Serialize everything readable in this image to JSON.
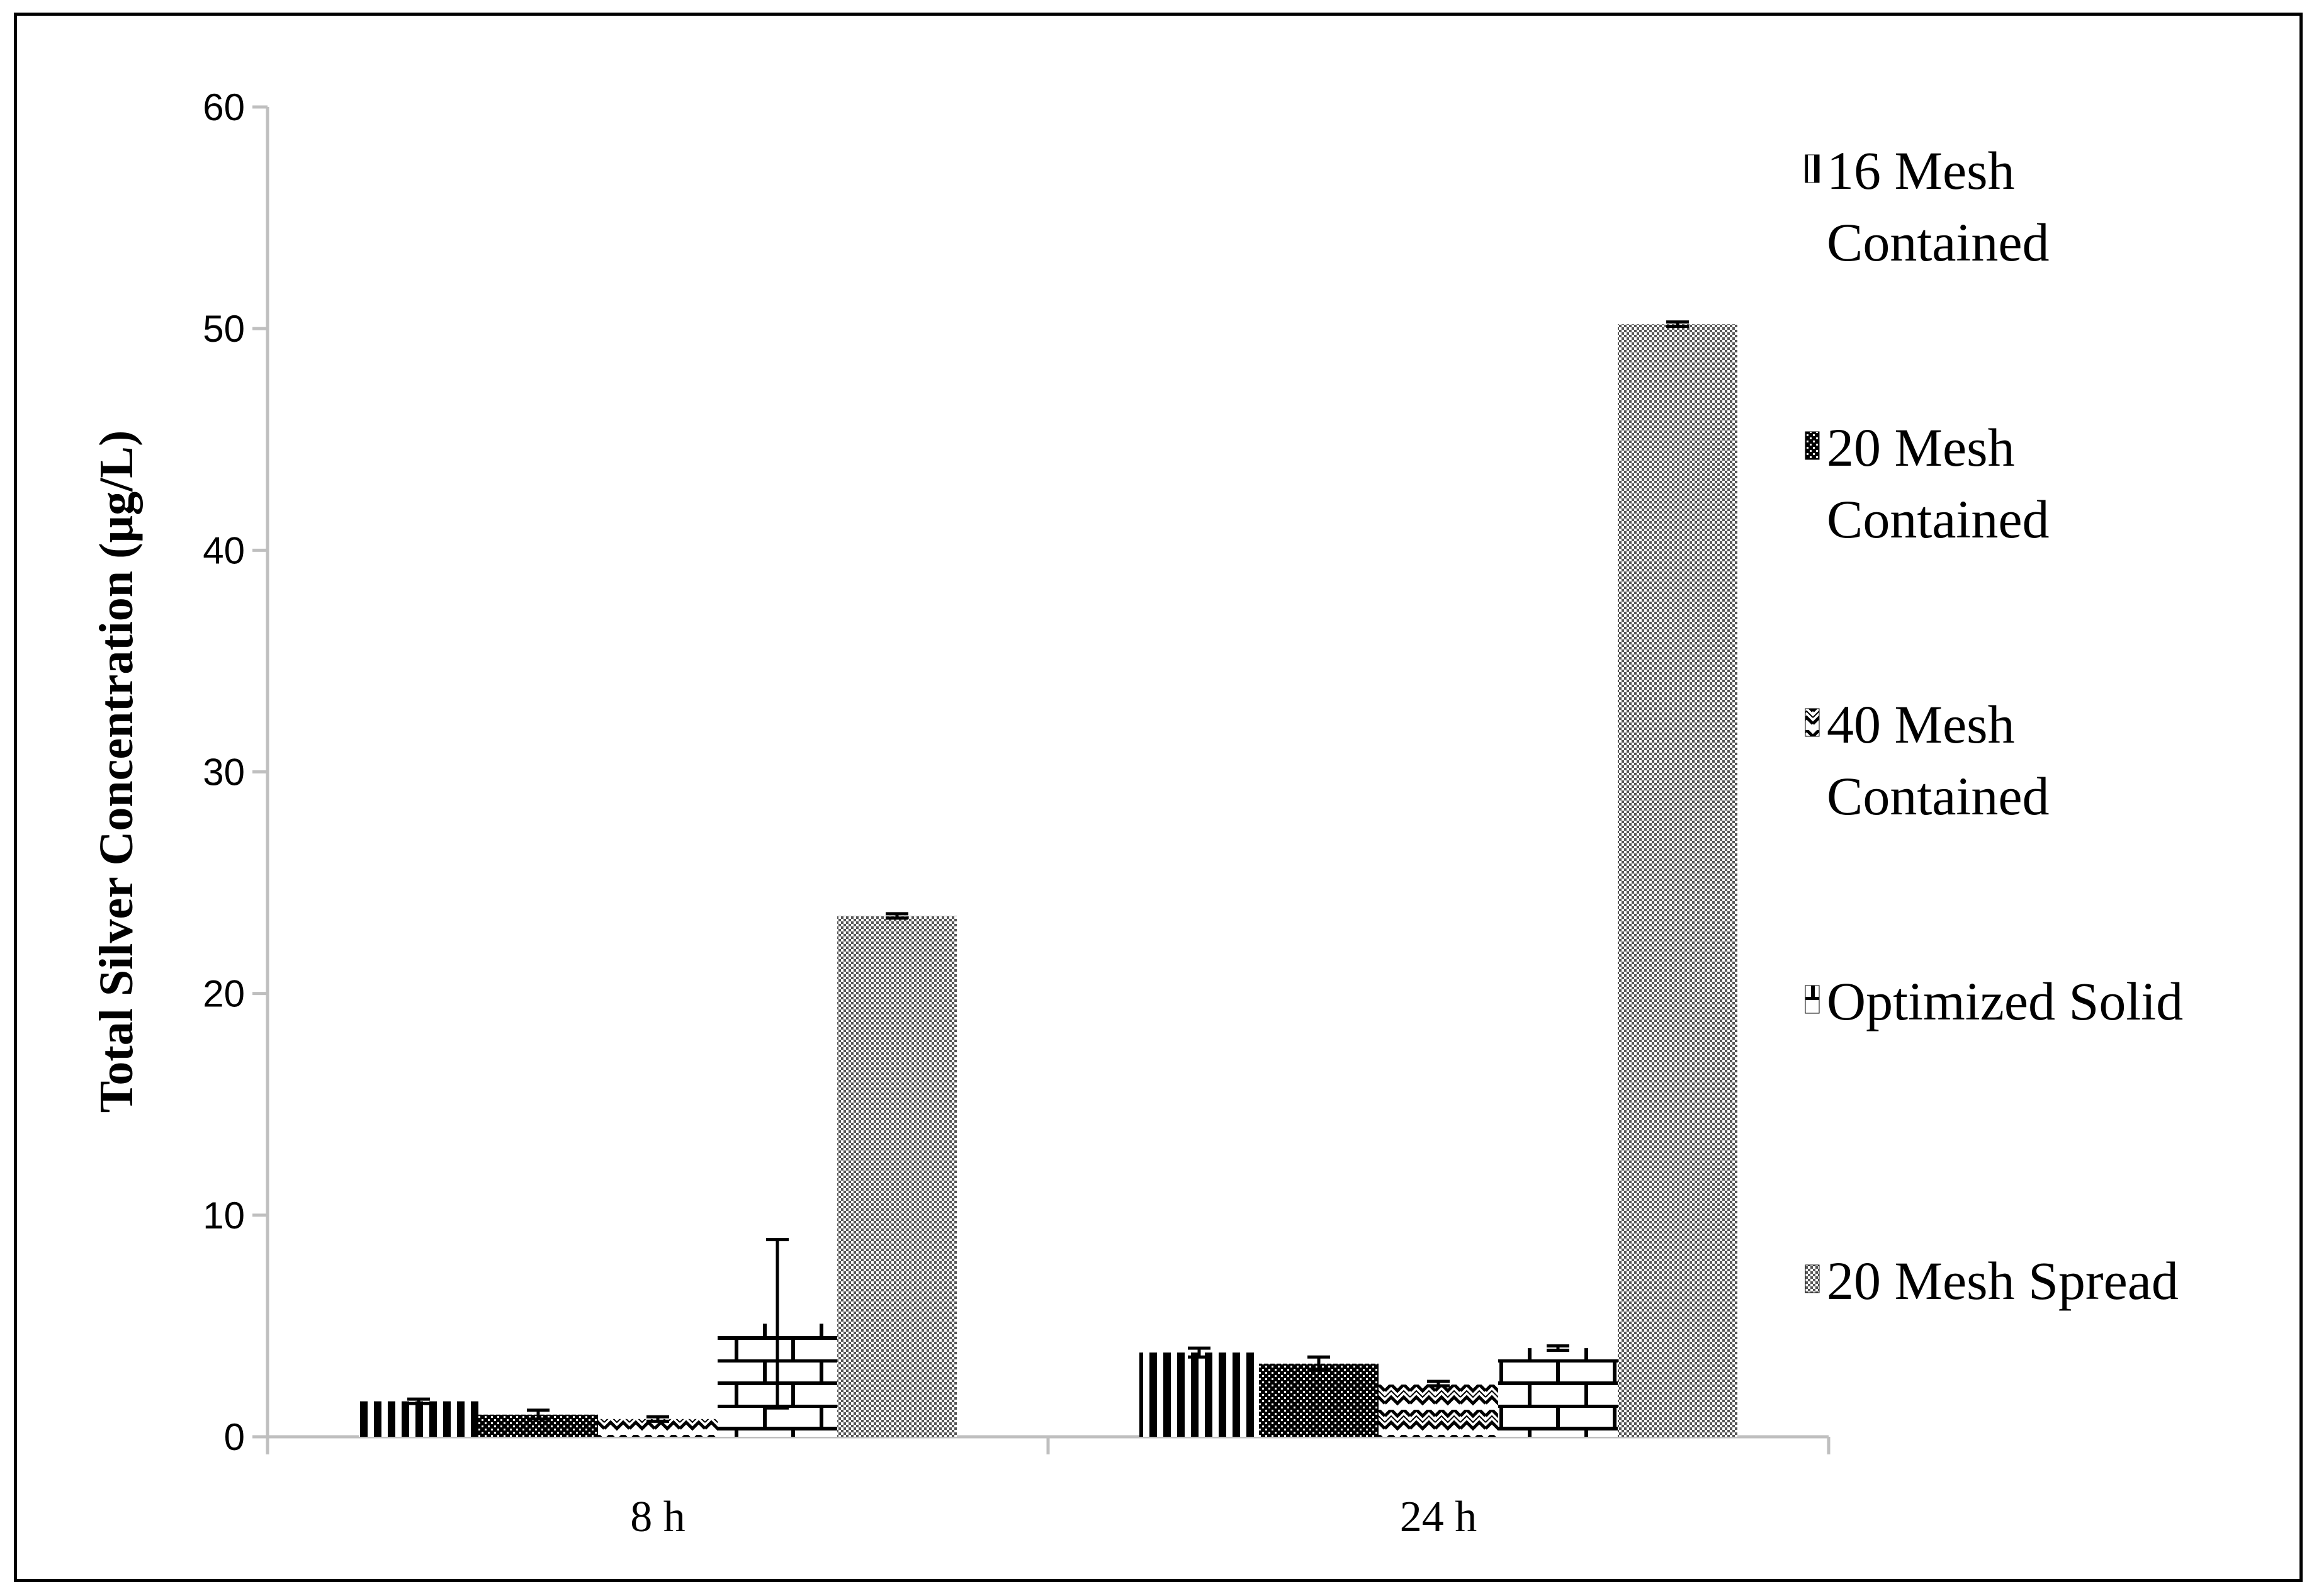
{
  "chart_data": {
    "type": "bar",
    "title": "",
    "xlabel": "",
    "ylabel": "Total Silver Concentration (µg/L)",
    "categories": [
      "8 h",
      "24 h"
    ],
    "ylim": [
      0,
      60
    ],
    "yticks": [
      0,
      10,
      20,
      30,
      40,
      50,
      60
    ],
    "grid": false,
    "legend_position": "right",
    "error_bars": true,
    "series": [
      {
        "name": "16 Mesh Contained",
        "legend_lines": [
          "16 Mesh",
          "Contained"
        ],
        "pattern": "vertical-stripes",
        "values": [
          1.6,
          3.8
        ],
        "errors": [
          0.1,
          0.2
        ]
      },
      {
        "name": "20 Mesh Contained",
        "legend_lines": [
          "20 Mesh",
          "Contained"
        ],
        "pattern": "dense-checker",
        "values": [
          1.0,
          3.3
        ],
        "errors": [
          0.2,
          0.3
        ]
      },
      {
        "name": "40 Mesh Contained",
        "legend_lines": [
          "40 Mesh",
          "Contained"
        ],
        "pattern": "zigzag",
        "values": [
          0.8,
          2.4
        ],
        "errors": [
          0.1,
          0.1
        ]
      },
      {
        "name": "Optimized Solid",
        "legend_lines": [
          "Optimized Solid"
        ],
        "pattern": "brick",
        "values": [
          5.1,
          4.0
        ],
        "errors": [
          3.8,
          0.1
        ]
      },
      {
        "name": "20 Mesh Spread",
        "legend_lines": [
          "20 Mesh Spread"
        ],
        "pattern": "fine-dots",
        "values": [
          23.5,
          50.2
        ],
        "errors": [
          0.1,
          0.1
        ]
      }
    ]
  }
}
